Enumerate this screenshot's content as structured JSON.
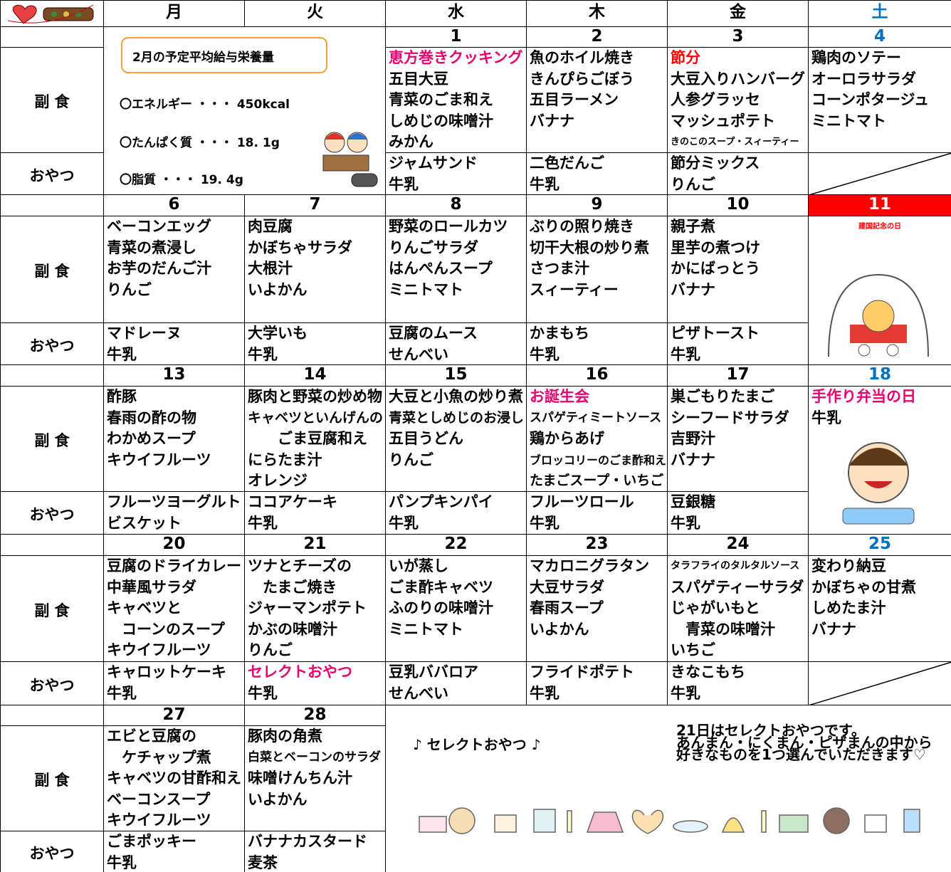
{
  "header": {
    "days": [
      "月",
      "火",
      "水",
      "木",
      "金",
      "土"
    ]
  },
  "labels": {
    "main": "副 食",
    "snack": "おやつ"
  },
  "nutrition": {
    "title": "2月の予定平均給与栄養量",
    "items": [
      "〇エネルギー ・・・ 450kcal",
      "〇たんぱく質 ・・・ 18. 1g",
      "〇脂質 ・・・ 19. 4g"
    ]
  },
  "weeks": [
    {
      "days": [
        {
          "date": 1,
          "main": [
            {
              "text": "恵方巻きクッキング",
              "color": "#e8006e"
            },
            "五目大豆",
            "青菜のごま和え",
            "しめじの味噌汁",
            "みかん"
          ],
          "snack": [
            "ジャムサンド",
            "牛乳"
          ]
        },
        {
          "date": 2,
          "main": [
            "魚のホイル焼き",
            "きんぴらごぼう",
            "五目ラーメン",
            "バナナ"
          ],
          "snack": [
            "二色だんご",
            "牛乳"
          ]
        },
        {
          "date": 3,
          "main": [
            {
              "text": "節分",
              "color": "#ff0000"
            },
            "大豆入りハンバーグ",
            "人参グラッセ",
            "マッシュポテト",
            "きのこのスープ・スィーティー"
          ],
          "snack": [
            "節分ミックス",
            "りんご"
          ]
        },
        {
          "date": 4,
          "main": [
            "鶏肉のソテー",
            "オーロラサラダ",
            "コーンポタージュ",
            "ミニトマト"
          ],
          "snack": []
        }
      ]
    },
    {
      "days": [
        {
          "date": 6,
          "main": [
            "ベーコンエッグ",
            "青菜の煮浸し",
            "お芋のだんご汁",
            "りんご"
          ],
          "snack": [
            "マドレーヌ",
            "牛乳"
          ]
        },
        {
          "date": 7,
          "main": [
            "肉豆腐",
            "かぼちゃサラダ",
            "大根汁",
            "いよかん"
          ],
          "snack": [
            "大学いも",
            "牛乳"
          ]
        },
        {
          "date": 8,
          "main": [
            "野菜のロールカツ",
            "りんごサラダ",
            "はんぺんスープ",
            "ミニトマト"
          ],
          "snack": [
            "豆腐のムース",
            "せんべい"
          ]
        },
        {
          "date": 9,
          "main": [
            "ぶりの照り焼き",
            "切干大根の炒り煮",
            "さつま汁",
            "スィーティー"
          ],
          "snack": [
            "かまもち",
            "牛乳"
          ]
        },
        {
          "date": 10,
          "main": [
            "親子煮",
            "里芋の煮つけ",
            "かにばっとう",
            "バナナ"
          ],
          "snack": [
            "ピザトースト",
            "牛乳"
          ]
        },
        {
          "date": 11,
          "date_bg": "#ff0000",
          "main": [
            {
              "text": "建国記念の日",
              "color": "#ff0000"
            }
          ]
        }
      ]
    },
    {
      "days": [
        {
          "date": 13,
          "main": [
            "酢豚",
            "春雨の酢の物",
            "わかめスープ",
            "キウイフルーツ"
          ],
          "snack": [
            "フルーツヨーグルト",
            "ビスケット"
          ]
        },
        {
          "date": 14,
          "main": [
            "豚肉と野菜の炒め物",
            "キャベツといんげんの",
            "　　ごま豆腐和え",
            "にらたま汁",
            "オレンジ"
          ],
          "snack": [
            "ココアケーキ",
            "牛乳"
          ]
        },
        {
          "date": 15,
          "main": [
            "大豆と小魚の炒り煮",
            "青菜としめじのお浸し",
            "五目うどん",
            "りんご"
          ],
          "snack": [
            "パンプキンパイ",
            "牛乳"
          ]
        },
        {
          "date": 16,
          "main": [
            {
              "text": "お誕生会",
              "color": "#e8006e"
            },
            "スパゲティミートソース",
            "鶏からあげ",
            "ブロッコリーのごま酢和え",
            "たまごスープ・いちご"
          ],
          "snack": [
            "フルーツロール",
            "牛乳"
          ]
        },
        {
          "date": 17,
          "main": [
            "巣ごもりたまご",
            "シーフードサラダ",
            "吉野汁",
            "バナナ"
          ],
          "snack": [
            "豆銀糖",
            "牛乳"
          ]
        },
        {
          "date": 18,
          "main": [
            {
              "text": "手作り弁当の日",
              "color": "#e8006e"
            },
            "牛乳"
          ]
        }
      ]
    },
    {
      "days": [
        {
          "date": 20,
          "main": [
            "豆腐のドライカレー",
            "中華風サラダ",
            "キャベツと",
            "　コーンのスープ",
            "キウイフルーツ"
          ],
          "snack": [
            "キャロットケーキ",
            "牛乳"
          ]
        },
        {
          "date": 21,
          "main": [
            "ツナとチーズの",
            "　たまご焼き",
            "ジャーマンポテト",
            "かぶの味噌汁",
            "りんご"
          ],
          "snack": [
            {
              "text": "セレクトおやつ",
              "color": "#e8006e"
            },
            "牛乳"
          ]
        },
        {
          "date": 22,
          "main": [
            "いが蒸し",
            "ごま酢キャベツ",
            "ふのりの味噌汁",
            "ミニトマト"
          ],
          "snack": [
            "豆乳ババロア",
            "せんべい"
          ]
        },
        {
          "date": 23,
          "main": [
            "マカロニグラタン",
            "大豆サラダ",
            "春雨スープ",
            "いよかん"
          ],
          "snack": [
            "フライドポテト",
            "牛乳"
          ]
        },
        {
          "date": 24,
          "main": [
            "タラフライのタルタルソース",
            "スパゲティーサラダ",
            "じゃがいもと",
            "　青菜の味噌汁",
            "いちご"
          ],
          "snack": [
            "きなこもち",
            "牛乳"
          ]
        },
        {
          "date": 25,
          "main": [
            "変わり納豆",
            "かぼちゃの甘煮",
            "しめたま汁",
            "バナナ"
          ],
          "snack": []
        }
      ]
    },
    {
      "days": [
        {
          "date": 27,
          "main": [
            "エビと豆腐の",
            "　ケチャップ煮",
            "キャベツの甘酢和え",
            "ベーコンスープ",
            "キウイフルーツ"
          ],
          "snack": [
            "ごまポッキー",
            "牛乳"
          ]
        },
        {
          "date": 28,
          "main": [
            "豚肉の角煮",
            "白菜とベーコンのサラダ",
            "味噌けんちん汁",
            "いよかん"
          ],
          "snack": [
            "バナナカスタード",
            "麦茶"
          ]
        }
      ]
    }
  ],
  "notes": {
    "select_title": "♪ セレクトおやつ ♪",
    "lines": [
      "21日はセレクトおやつです。",
      "あんまん・にくまん・ピザまんの中から",
      "好きなものを1つ選んでいただきます♡"
    ]
  }
}
